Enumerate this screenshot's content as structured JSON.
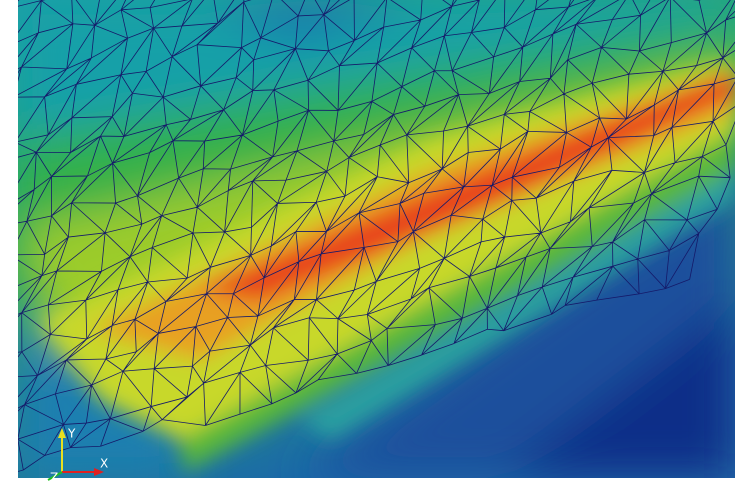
{
  "axes": {
    "x": "X",
    "y": "Y",
    "z": "Z"
  }
}
